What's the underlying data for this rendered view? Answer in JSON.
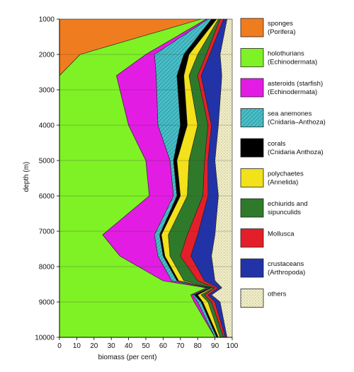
{
  "chart_data": {
    "type": "area",
    "title": "",
    "xlabel": "biomass (per cent)",
    "ylabel": "depth (m)",
    "xlim": [
      0,
      100
    ],
    "ylim": [
      1000,
      10000
    ],
    "y_inverted": true,
    "x_ticks": [
      "0",
      "10",
      "20",
      "30",
      "40",
      "50",
      "60",
      "70",
      "80",
      "90",
      "100"
    ],
    "y_ticks": [
      "1000",
      "2000",
      "3000",
      "4000",
      "5000",
      "6000",
      "7000",
      "8000",
      "9000",
      "10000"
    ],
    "depths": [
      1000,
      2000,
      2600,
      4000,
      5000,
      6000,
      7100,
      7700,
      8400,
      8600,
      8800,
      9000,
      10000
    ],
    "series_cumulative": [
      {
        "name": "sponges (Porifera)",
        "color": "#f07c20",
        "values": [
          82,
          12,
          0,
          0,
          0,
          0,
          0,
          0,
          0,
          0,
          0,
          0,
          0
        ]
      },
      {
        "name": "holothurians (Echinodermata)",
        "color": "#7ff226",
        "values": [
          85,
          50,
          33,
          40,
          50,
          52,
          25,
          35,
          60,
          85,
          76,
          78,
          90
        ]
      },
      {
        "name": "asteroids (starfish) (Echinodermata)",
        "color": "#e31ce3",
        "values": [
          86,
          55,
          56,
          57,
          64,
          66,
          55,
          57,
          65,
          86,
          77,
          80,
          90
        ]
      },
      {
        "name": "sea anemones (Cnidaria–Anthoza)",
        "color": "#49bfc8",
        "values": [
          88,
          72,
          68,
          70,
          66,
          68,
          58,
          60,
          68,
          87,
          78,
          82,
          91
        ]
      },
      {
        "name": "corals (Cnidaria Anthoza)",
        "color": "#000000",
        "values": [
          91,
          75,
          72,
          74,
          68,
          70,
          59,
          61,
          69,
          88,
          80,
          83,
          92
        ]
      },
      {
        "name": "polychaetes (Annelida)",
        "color": "#f2e11b",
        "values": [
          92,
          80,
          75,
          80,
          75,
          74,
          63,
          64,
          72,
          89,
          82,
          86,
          93
        ]
      },
      {
        "name": "echiurids and sipunculids",
        "color": "#2f7a2a",
        "values": [
          93,
          85,
          80,
          86,
          84,
          83,
          74,
          70,
          80,
          90,
          84,
          88,
          95
        ]
      },
      {
        "name": "Mollusca",
        "color": "#e3202a",
        "values": [
          95,
          87,
          82,
          88,
          86,
          86,
          80,
          76,
          84,
          92,
          86,
          90,
          96
        ]
      },
      {
        "name": "crustaceans (Arthropoda)",
        "color": "#2233a8",
        "values": [
          97,
          93,
          94,
          92,
          90,
          92,
          90,
          88,
          90,
          94,
          88,
          93,
          97
        ]
      },
      {
        "name": "others",
        "color": "#f3f0c8",
        "values": [
          100,
          100,
          100,
          100,
          100,
          100,
          100,
          100,
          100,
          100,
          100,
          100,
          100
        ]
      }
    ],
    "legend": [
      {
        "key": "sponges",
        "line1": "sponges",
        "line2": "(Porifera)",
        "color": "#f07c20"
      },
      {
        "key": "holothurians",
        "line1": "holothurians",
        "line2": "(Echinodermata)",
        "color": "#7ff226"
      },
      {
        "key": "asteroids",
        "line1": "asteroids (starfish)",
        "line2": "(Echinodermata)",
        "color": "#e31ce3"
      },
      {
        "key": "anemones",
        "line1": "sea anemones",
        "line2": "(Cnidaria–Anthoza)",
        "color": "#49bfc8"
      },
      {
        "key": "corals",
        "line1": "corals",
        "line2": "(Cnidaria  Anthoza)",
        "color": "#000000"
      },
      {
        "key": "polychaetes",
        "line1": "polychaetes",
        "line2": "(Annelida)",
        "color": "#f2e11b"
      },
      {
        "key": "echiurids",
        "line1": "echiurids and",
        "line2": "sipunculids",
        "color": "#2f7a2a"
      },
      {
        "key": "mollusca",
        "line1": "Mollusca",
        "line2": "",
        "color": "#e3202a"
      },
      {
        "key": "crustaceans",
        "line1": "crustaceans",
        "line2": "(Arthropoda)",
        "color": "#2233a8"
      },
      {
        "key": "others",
        "line1": "others",
        "line2": "",
        "color": "#f3f0c8"
      }
    ],
    "legend_placement": "right",
    "grid": "horizontal lines at each depth tick"
  }
}
